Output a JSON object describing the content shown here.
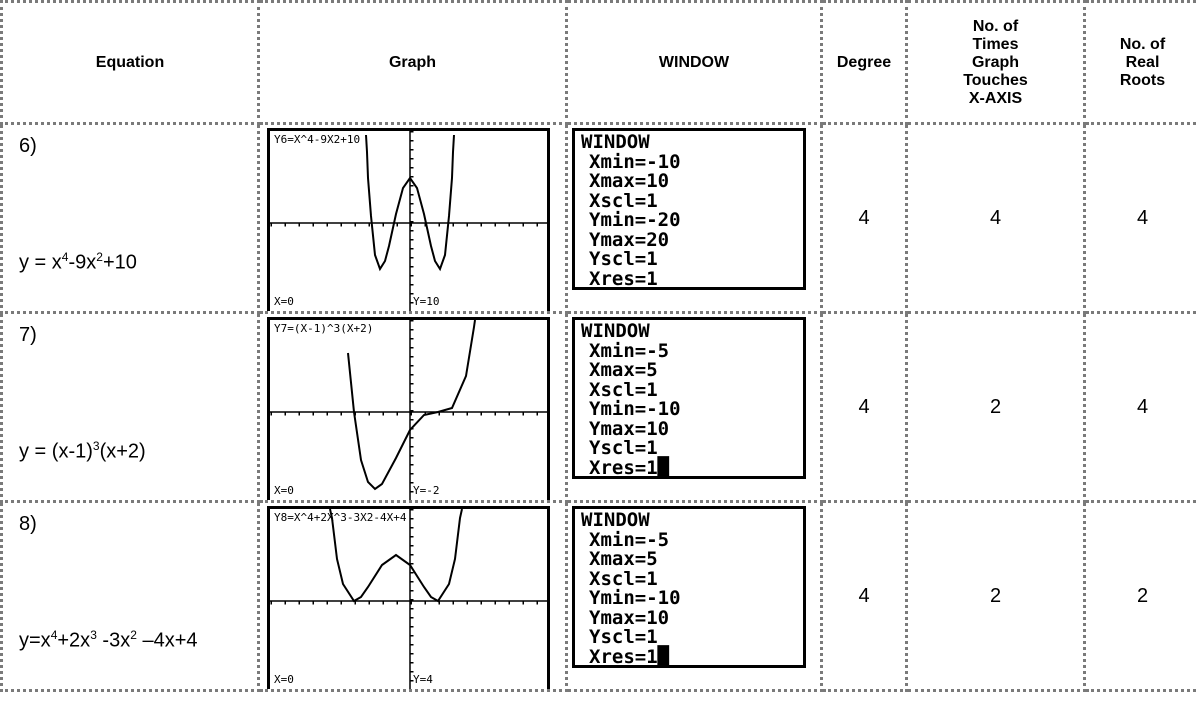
{
  "header": {
    "equation": "Equation",
    "graph": "Graph",
    "window": "WINDOW",
    "degree": "Degree",
    "touches": [
      "No. of",
      "Times",
      "Graph",
      "Touches",
      "X-AXIS"
    ],
    "roots": [
      "No. of",
      "Real",
      "Roots"
    ]
  },
  "rows": [
    {
      "number": "6)",
      "equation": [
        "y = x",
        "4",
        "-9x",
        "2",
        "+10"
      ],
      "graph": {
        "label": "Y6=X^4-9X2+10",
        "x": "X=0",
        "y": "Y=10"
      },
      "window": [
        "WINDOW",
        "Xmin=-10",
        "Xmax=10",
        "Xscl=1",
        "Ymin=-20",
        "Ymax=20",
        "Yscl=1",
        "Xres=1"
      ],
      "degree": 4,
      "touches": 4,
      "roots": 4
    },
    {
      "number": "7)",
      "equation": [
        "y = (x-1)",
        "3",
        "(x+2)"
      ],
      "graph": {
        "label": "Y7=(X-1)^3(X+2)",
        "x": "X=0",
        "y": "Y=-2"
      },
      "window": [
        "WINDOW",
        "Xmin=-5",
        "Xmax=5",
        "Xscl=1",
        "Ymin=-10",
        "Ymax=10",
        "Yscl=1",
        "Xres=1█"
      ],
      "degree": 4,
      "touches": 2,
      "roots": 4
    },
    {
      "number": "8)",
      "equation": [
        "y=x",
        "4",
        "+2x",
        "3",
        " -3x",
        "2",
        " –4x+4"
      ],
      "graph": {
        "label": "Y8=X^4+2X^3-3X2-4X+4",
        "x": "X=0",
        "y": "Y=4"
      },
      "window": [
        "WINDOW",
        "Xmin=-5",
        "Xmax=5",
        "Xscl=1",
        "Ymin=-10",
        "Ymax=10",
        "Yscl=1",
        "Xres=1█"
      ],
      "degree": 4,
      "touches": 2,
      "roots": 2
    }
  ]
}
